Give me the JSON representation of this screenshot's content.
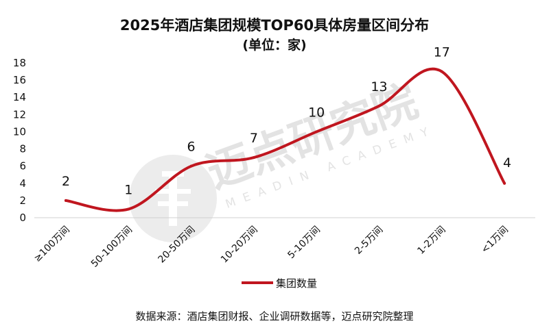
{
  "chart_data": {
    "type": "line",
    "title": "2025年酒店集团规模TOP60具体房量区间分布",
    "subtitle": "(单位：家)",
    "categories": [
      "≥100万间",
      "50-100万间",
      "20-50万间",
      "10-20万间",
      "5-10万间",
      "2-5万间",
      "1-2万间",
      "<1万间"
    ],
    "series": [
      {
        "name": "集团数量",
        "values": [
          2,
          1,
          6,
          7,
          10,
          13,
          17,
          4
        ],
        "color": "#c0161f"
      }
    ],
    "ylim": [
      0,
      18
    ],
    "yticks": [
      0,
      2,
      4,
      6,
      8,
      10,
      12,
      14,
      16,
      18
    ],
    "smooth": true,
    "legend_position": "bottom",
    "grid": false
  },
  "source_note": "数据来源：酒店集团财报、企业调研数据等，迈点研究院整理",
  "watermark": {
    "name": "迈点研究院",
    "english": "MEADIN ACADEMY"
  }
}
